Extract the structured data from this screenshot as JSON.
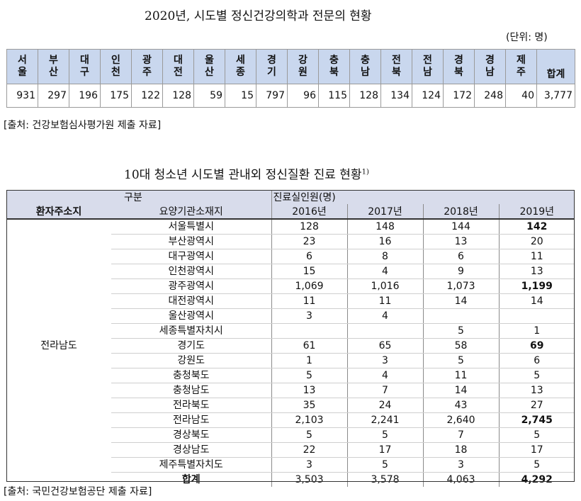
{
  "title1": "2020년, 시도별 정신건강의학과 전문의 현황",
  "unit": "(단위: 명)",
  "table1": {
    "headers": [
      "서울",
      "부산",
      "대구",
      "인천",
      "광주",
      "대전",
      "울산",
      "세종",
      "경기",
      "강원",
      "충북",
      "충남",
      "전북",
      "전남",
      "경북",
      "경남",
      "제주",
      "합계"
    ],
    "values": [
      "931",
      "297",
      "196",
      "175",
      "122",
      "128",
      "59",
      "15",
      "797",
      "96",
      "115",
      "128",
      "134",
      "124",
      "172",
      "248",
      "40",
      "3,777"
    ]
  },
  "source1": "[출처: 건강보험심사평가원 제출 자료]",
  "title2": "10대 청소년 시도별 관내외 정신질환 진료 현황",
  "title2_sup": "1)",
  "table2": {
    "h_gubun": "구분",
    "h_patient": "환자주소지",
    "h_facility": "요양기관소재지",
    "h_count": "진료실인원(명)",
    "years": [
      "2016년",
      "2017년",
      "2018년",
      "2019년"
    ],
    "region": "전라남도",
    "rows": [
      {
        "name": "서울특별시",
        "v": [
          "128",
          "148",
          "144",
          "142"
        ],
        "bold_last": true
      },
      {
        "name": "부산광역시",
        "v": [
          "23",
          "16",
          "13",
          "20"
        ],
        "bold_last": false
      },
      {
        "name": "대구광역시",
        "v": [
          "6",
          "8",
          "6",
          "11"
        ],
        "bold_last": false
      },
      {
        "name": "인천광역시",
        "v": [
          "15",
          "4",
          "9",
          "13"
        ],
        "bold_last": false
      },
      {
        "name": "광주광역시",
        "v": [
          "1,069",
          "1,016",
          "1,073",
          "1,199"
        ],
        "bold_last": true
      },
      {
        "name": "대전광역시",
        "v": [
          "11",
          "11",
          "14",
          "14"
        ],
        "bold_last": false
      },
      {
        "name": "울산광역시",
        "v": [
          "3",
          "4",
          "",
          ""
        ],
        "bold_last": false
      },
      {
        "name": "세종특별자치시",
        "v": [
          "",
          "",
          "5",
          "1"
        ],
        "bold_last": false
      },
      {
        "name": "경기도",
        "v": [
          "61",
          "65",
          "58",
          "69"
        ],
        "bold_last": true
      },
      {
        "name": "강원도",
        "v": [
          "1",
          "3",
          "5",
          "6"
        ],
        "bold_last": false
      },
      {
        "name": "충청북도",
        "v": [
          "5",
          "4",
          "11",
          "5"
        ],
        "bold_last": false
      },
      {
        "name": "충청남도",
        "v": [
          "13",
          "7",
          "14",
          "13"
        ],
        "bold_last": false
      },
      {
        "name": "전라북도",
        "v": [
          "35",
          "24",
          "43",
          "27"
        ],
        "bold_last": false
      },
      {
        "name": "전라남도",
        "v": [
          "2,103",
          "2,241",
          "2,640",
          "2,745"
        ],
        "bold_last": true
      },
      {
        "name": "경상북도",
        "v": [
          "5",
          "5",
          "7",
          "5"
        ],
        "bold_last": false
      },
      {
        "name": "경상남도",
        "v": [
          "22",
          "17",
          "18",
          "17"
        ],
        "bold_last": false
      },
      {
        "name": "제주특별자치도",
        "v": [
          "3",
          "5",
          "3",
          "5"
        ],
        "bold_last": false
      }
    ],
    "total_label": "합계",
    "total": [
      "3,503",
      "3,578",
      "4,063",
      "4,292"
    ]
  },
  "source2": "[출처: 국민건강보험공단 제출 자료]"
}
